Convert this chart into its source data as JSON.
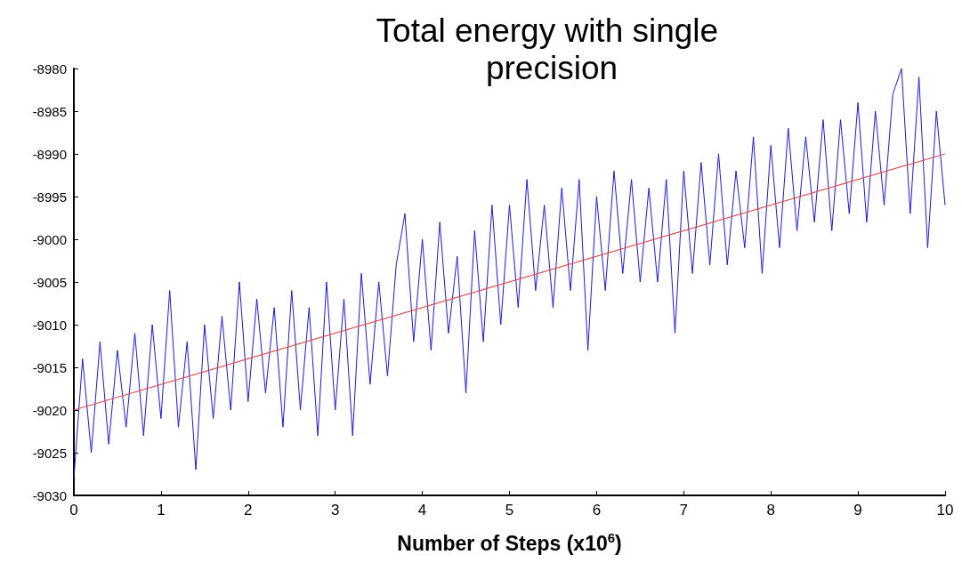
{
  "chart_data": {
    "type": "line",
    "title": "Total energy with single precision",
    "xlabel": "Number of Steps (x10$^{6}$)",
    "xlim": [
      0,
      10
    ],
    "xticks": [
      0,
      1,
      2,
      3,
      4,
      5,
      6,
      7,
      8,
      9,
      10
    ],
    "ylim": [
      -9030,
      -8980
    ],
    "yticks": [
      -9030,
      -9025,
      -9020,
      -9015,
      -9010,
      -9005,
      -9000,
      -8995,
      -8990,
      -8985,
      -8980
    ],
    "grid": false,
    "series": [
      {
        "color": "#1a1acc",
        "x": [
          0,
          0.1,
          0.2,
          0.3,
          0.4,
          0.5,
          0.6,
          0.7,
          0.8,
          0.9,
          1,
          1.1,
          1.2,
          1.3,
          1.4,
          1.5,
          1.6,
          1.7,
          1.8,
          1.9,
          2,
          2.1,
          2.2,
          2.3,
          2.4,
          2.5,
          2.6,
          2.7,
          2.8,
          2.9,
          3,
          3.1,
          3.2,
          3.3,
          3.4,
          3.5,
          3.6,
          3.7,
          3.8,
          3.9,
          4,
          4.1,
          4.2,
          4.3,
          4.4,
          4.5,
          4.6,
          4.7,
          4.8,
          4.9,
          5,
          5.1,
          5.2,
          5.3,
          5.4,
          5.5,
          5.6,
          5.7,
          5.8,
          5.9,
          6,
          6.1,
          6.2,
          6.3,
          6.4,
          6.5,
          6.6,
          6.7,
          6.8,
          6.9,
          7,
          7.1,
          7.2,
          7.3,
          7.4,
          7.5,
          7.6,
          7.7,
          7.8,
          7.9,
          8,
          8.1,
          8.2,
          8.3,
          8.4,
          8.5,
          8.6,
          8.7,
          8.8,
          8.9,
          9,
          9.1,
          9.2,
          9.3,
          9.4,
          9.5,
          9.6,
          9.7,
          9.8,
          9.9,
          10
        ],
        "values": [
          -9028,
          -9014,
          -9025,
          -9012,
          -9024,
          -9013,
          -9022,
          -9011,
          -9023,
          -9010,
          -9021,
          -9006,
          -9022,
          -9012,
          -9027,
          -9010,
          -9021,
          -9009,
          -9020,
          -9005,
          -9019,
          -9007,
          -9018,
          -9008,
          -9022,
          -9006,
          -9020,
          -9008,
          -9023,
          -9005,
          -9020,
          -9007,
          -9023,
          -9004,
          -9017,
          -9005,
          -9016,
          -9003,
          -8997,
          -9012,
          -9000,
          -9013,
          -8998,
          -9011,
          -9002,
          -9018,
          -8999,
          -9012,
          -8996,
          -9010,
          -8996,
          -9008,
          -8993,
          -9006,
          -8996,
          -9008,
          -8994,
          -9006,
          -8993,
          -9013,
          -8995,
          -9006,
          -8992,
          -9004,
          -8993,
          -9005,
          -8994,
          -9005,
          -8993,
          -9011,
          -8992,
          -9004,
          -8991,
          -9003,
          -8990,
          -9003,
          -8992,
          -9001,
          -8988,
          -9004,
          -8989,
          -9001,
          -8987,
          -8999,
          -8988,
          -8998,
          -8986,
          -8999,
          -8986,
          -8997,
          -8984,
          -8998,
          -8985,
          -8996,
          -8983,
          -8980,
          -8997,
          -8981,
          -9001,
          -8985,
          -8996
        ]
      },
      {
        "color": "#e05050",
        "x": [
          0,
          10
        ],
        "values": [
          -9020,
          -8990
        ]
      }
    ]
  }
}
